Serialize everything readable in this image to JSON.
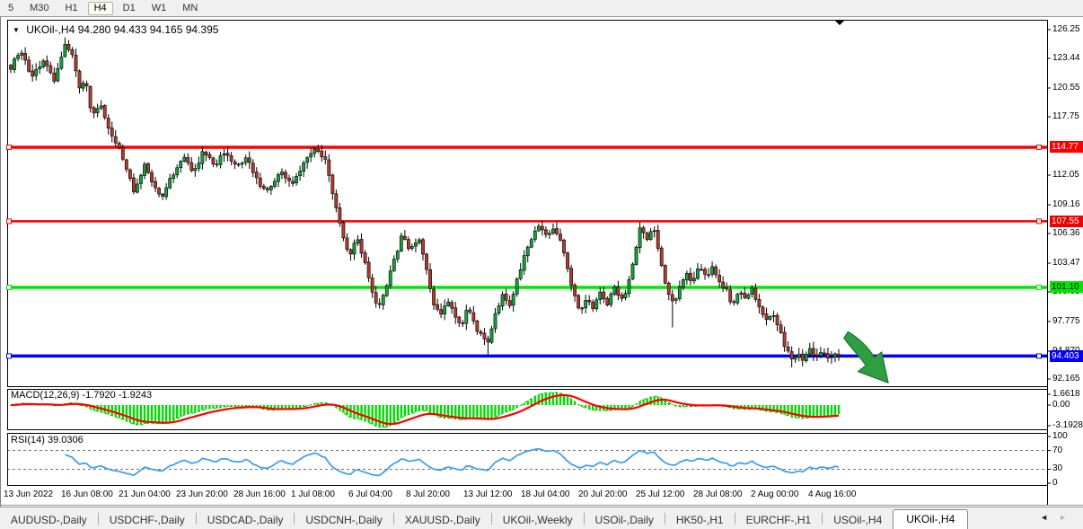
{
  "toolbar": {
    "timeframes": [
      "5",
      "M30",
      "H1",
      "H4",
      "D1",
      "W1",
      "MN"
    ],
    "active_index": 3
  },
  "chart": {
    "symbol": "UKOil-,H4",
    "ohlc_text": "94.280 94.433 94.165 94.395",
    "macd_label": "MACD(12,26,9) -1.7920 -1.9243",
    "rsi_label": "RSI(14) 39.0306"
  },
  "chart_data": {
    "type": "candlestick",
    "symbol": "UKOil-,H4",
    "timeframe": "H4",
    "current_ohlc": {
      "open": 94.28,
      "high": 94.433,
      "low": 94.165,
      "close": 94.395
    },
    "price_range": [
      91.46,
      127.21
    ],
    "axis_ticks": [
      "126.25",
      "123.44",
      "120.55",
      "117.75",
      "112.05",
      "109.16",
      "106.36",
      "103.47",
      "100.68",
      "97.775",
      "94.870",
      "92.165"
    ],
    "axis_tick_values": [
      126.25,
      123.44,
      120.55,
      117.75,
      112.05,
      109.16,
      106.36,
      103.47,
      100.68,
      97.775,
      94.87,
      92.165
    ],
    "levels": [
      {
        "price": 114.77,
        "label": "114.77",
        "color": "#ff0000",
        "text_color": "#ffffff",
        "width": 3.5
      },
      {
        "price": 107.55,
        "label": "107.55",
        "color": "#f00000",
        "text_color": "#ffffff",
        "width": 2.5
      },
      {
        "price": 101.1,
        "label": "101.10",
        "color": "#00e800",
        "text_color": "#000000",
        "width": 3.5
      },
      {
        "price": 94.403,
        "label": "94.403",
        "color": "#0000ff",
        "text_color": "#ffffff",
        "width": 3.5
      }
    ],
    "time_labels": [
      "13 Jun 2022",
      "16 Jun 08:00",
      "21 Jun 04:00",
      "23 Jun 20:00",
      "28 Jun 16:00",
      "1 Jul 08:00",
      "6 Jul 04:00",
      "8 Jul 20:00",
      "13 Jul 12:00",
      "18 Jul 04:00",
      "20 Jul 20:00",
      "25 Jul 12:00",
      "28 Jul 08:00",
      "2 Aug 00:00",
      "4 Aug 16:00"
    ],
    "candles": {
      "count": 230,
      "up_color": "#12a33b",
      "down_color": "#b23b2e",
      "wick_color": "#000000",
      "close_anchors": [
        [
          0,
          122.6
        ],
        [
          0.012,
          124.2
        ],
        [
          0.025,
          121.6
        ],
        [
          0.04,
          123.4
        ],
        [
          0.052,
          121.2
        ],
        [
          0.065,
          124.9
        ],
        [
          0.075,
          123.6
        ],
        [
          0.083,
          120.3
        ],
        [
          0.09,
          121.4
        ],
        [
          0.098,
          117.6
        ],
        [
          0.108,
          118.9
        ],
        [
          0.118,
          116.8
        ],
        [
          0.13,
          114.8
        ],
        [
          0.14,
          112.6
        ],
        [
          0.15,
          110.3
        ],
        [
          0.162,
          113
        ],
        [
          0.172,
          111.2
        ],
        [
          0.182,
          109.7
        ],
        [
          0.195,
          112
        ],
        [
          0.208,
          114
        ],
        [
          0.22,
          112.3
        ],
        [
          0.233,
          114.4
        ],
        [
          0.246,
          112.9
        ],
        [
          0.26,
          114.5
        ],
        [
          0.272,
          112.7
        ],
        [
          0.285,
          113.9
        ],
        [
          0.298,
          111.4
        ],
        [
          0.312,
          110.5
        ],
        [
          0.325,
          112.4
        ],
        [
          0.34,
          111.3
        ],
        [
          0.355,
          113.2
        ],
        [
          0.368,
          114.5
        ],
        [
          0.38,
          113.6
        ],
        [
          0.39,
          110
        ],
        [
          0.4,
          106.3
        ],
        [
          0.408,
          104.2
        ],
        [
          0.418,
          105.8
        ],
        [
          0.427,
          103.7
        ],
        [
          0.436,
          100.6
        ],
        [
          0.443,
          99.2
        ],
        [
          0.452,
          101
        ],
        [
          0.462,
          103.4
        ],
        [
          0.472,
          106.2
        ],
        [
          0.482,
          104.9
        ],
        [
          0.492,
          106
        ],
        [
          0.502,
          102.8
        ],
        [
          0.51,
          99.7
        ],
        [
          0.518,
          98.3
        ],
        [
          0.527,
          100
        ],
        [
          0.535,
          98.7
        ],
        [
          0.543,
          97.1
        ],
        [
          0.552,
          99
        ],
        [
          0.56,
          97.5
        ],
        [
          0.569,
          96.2
        ],
        [
          0.576,
          95.8
        ],
        [
          0.585,
          98.4
        ],
        [
          0.594,
          100.5
        ],
        [
          0.602,
          99.3
        ],
        [
          0.612,
          102
        ],
        [
          0.622,
          104.8
        ],
        [
          0.632,
          106.5
        ],
        [
          0.64,
          107.2
        ],
        [
          0.648,
          105.9
        ],
        [
          0.656,
          107.2
        ],
        [
          0.665,
          105.2
        ],
        [
          0.673,
          102.9
        ],
        [
          0.681,
          100.1
        ],
        [
          0.688,
          98.6
        ],
        [
          0.696,
          99.9
        ],
        [
          0.704,
          98.9
        ],
        [
          0.712,
          100.7
        ],
        [
          0.72,
          99.4
        ],
        [
          0.728,
          101.3
        ],
        [
          0.736,
          99.9
        ],
        [
          0.744,
          100.9
        ],
        [
          0.752,
          103.6
        ],
        [
          0.76,
          107
        ],
        [
          0.768,
          105.5
        ],
        [
          0.776,
          106.9
        ],
        [
          0.784,
          103.8
        ],
        [
          0.792,
          101.2
        ],
        [
          0.8,
          99.5
        ],
        [
          0.808,
          101
        ],
        [
          0.816,
          102.3
        ],
        [
          0.824,
          101.5
        ],
        [
          0.832,
          103.3
        ],
        [
          0.84,
          102.3
        ],
        [
          0.848,
          103.1
        ],
        [
          0.856,
          101.7
        ],
        [
          0.864,
          100.9
        ],
        [
          0.872,
          99.3
        ],
        [
          0.88,
          100.8
        ],
        [
          0.888,
          99.8
        ],
        [
          0.896,
          101
        ],
        [
          0.904,
          99.1
        ],
        [
          0.912,
          97.7
        ],
        [
          0.92,
          98.9
        ],
        [
          0.928,
          96.9
        ],
        [
          0.936,
          95.2
        ],
        [
          0.944,
          93.9
        ],
        [
          0.95,
          94.5
        ],
        [
          0.957,
          94
        ],
        [
          0.964,
          95.1
        ],
        [
          0.971,
          94.2
        ],
        [
          0.978,
          94.8
        ],
        [
          0.985,
          94.1
        ],
        [
          0.992,
          94.6
        ],
        [
          1,
          94.395
        ]
      ],
      "wick_events": [
        {
          "frac": 0.065,
          "high": 125.5
        },
        {
          "frac": 0.576,
          "low": 94.55
        },
        {
          "frac": 0.8,
          "low": 97.2
        },
        {
          "frac": 0.944,
          "low": 93.3
        }
      ]
    },
    "indicators": {
      "macd": {
        "name": "MACD",
        "params": [
          12,
          26,
          9
        ],
        "value_macd": -1.792,
        "value_signal": -1.9243,
        "scale_ticks": [
          "1.6618",
          "0.00",
          "-3.1928"
        ],
        "hist_color": "#00dc00",
        "macd_line_color": "#00c000",
        "signal_color": "#ff0000"
      },
      "rsi": {
        "name": "RSI",
        "period": 14,
        "value": 39.0306,
        "scale_ticks": [
          "100",
          "70",
          "30",
          "0"
        ],
        "overbought": 70,
        "oversold": 30,
        "line_color": "#42a0f0",
        "level_line_style": "dashed"
      }
    },
    "annotations": [
      {
        "type": "arrow",
        "direction": "down-right",
        "color": "#2f9e41"
      }
    ],
    "legend_position": "none",
    "grid": false
  },
  "tab_bar": {
    "tabs": [
      "AUDUSD-,Daily",
      "USDCHF-,Daily",
      "USDCAD-,Daily",
      "USDCNH-,Daily",
      "XAUUSD-,Daily",
      "UKOil-,Weekly",
      "USOil-,Daily",
      "HK50-,H1",
      "EURCHF-,H1",
      "USOil-,H4",
      "UKOil-,H4"
    ],
    "active_index": 10,
    "scroll_left": "◄",
    "scroll_right": "►"
  }
}
